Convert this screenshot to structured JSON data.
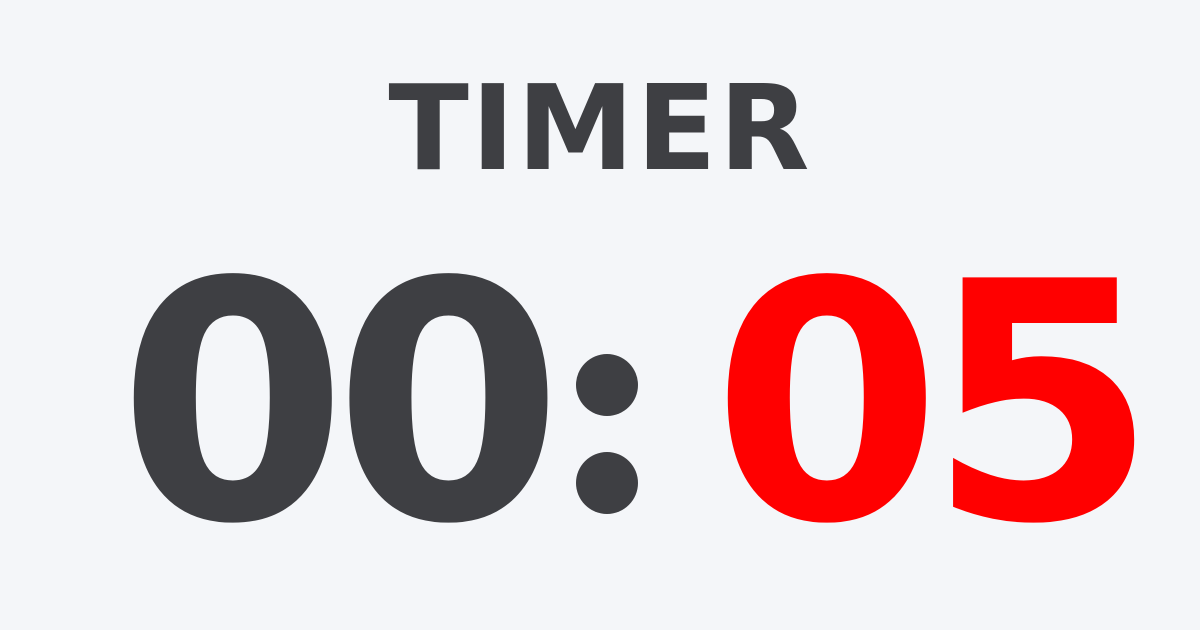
{
  "timer": {
    "title": "TIMER",
    "minutes": "00",
    "separator": ":",
    "seconds": "05"
  },
  "colors": {
    "background": "#f4f6f9",
    "text": "#3e3f43",
    "seconds_alert": "#ff0000"
  }
}
